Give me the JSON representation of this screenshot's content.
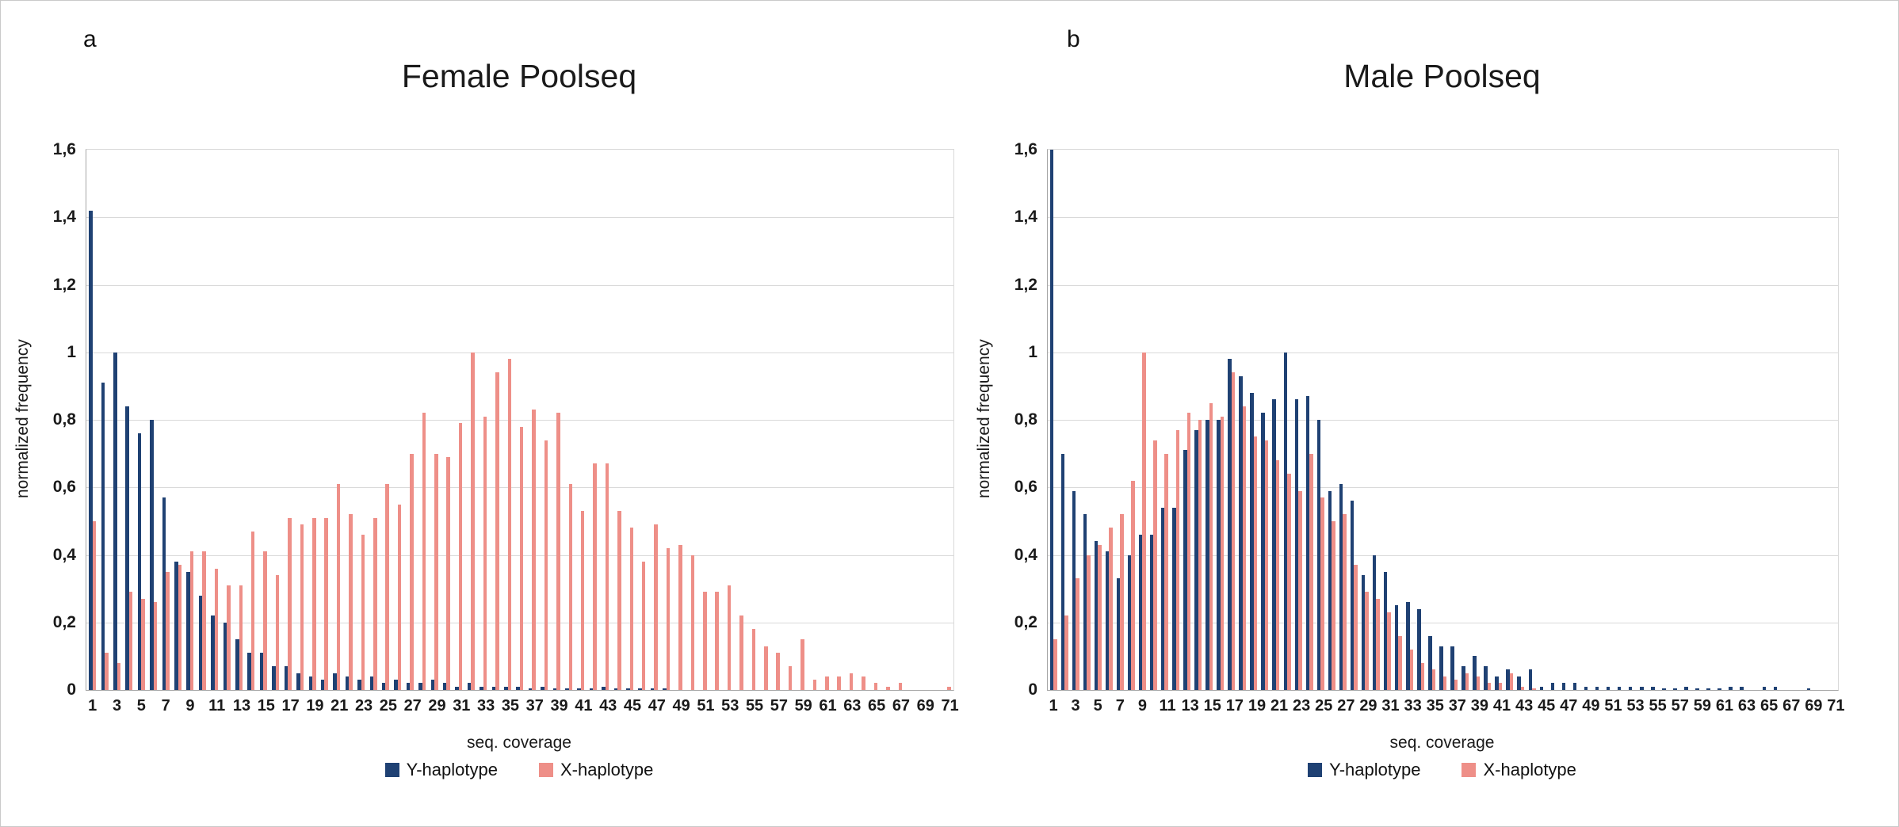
{
  "figure": {
    "panels": [
      {
        "label": "a"
      },
      {
        "label": "b"
      }
    ]
  },
  "chart_data": [
    {
      "type": "bar",
      "panel": "a",
      "title": "Female Poolseq",
      "xlabel": "seq. coverage",
      "ylabel": "normalized frequency",
      "ylim": [
        0,
        1.6
      ],
      "ytick_labels": [
        "1,6",
        "1,4",
        "1,2",
        "1",
        "0,8",
        "0,6",
        "0,4",
        "0,2",
        "0"
      ],
      "xtick_step": 2,
      "grid": "horizontal",
      "legend_position": "bottom",
      "categories": [
        1,
        2,
        3,
        4,
        5,
        6,
        7,
        8,
        9,
        10,
        11,
        12,
        13,
        14,
        15,
        16,
        17,
        18,
        19,
        20,
        21,
        22,
        23,
        24,
        25,
        26,
        27,
        28,
        29,
        30,
        31,
        32,
        33,
        34,
        35,
        36,
        37,
        38,
        39,
        40,
        41,
        42,
        43,
        44,
        45,
        46,
        47,
        48,
        49,
        50,
        51,
        52,
        53,
        54,
        55,
        56,
        57,
        58,
        59,
        60,
        61,
        62,
        63,
        64,
        65,
        66,
        67,
        68,
        69,
        70,
        71
      ],
      "series": [
        {
          "name": "Y-haplotype",
          "color": "#1f4173",
          "values": [
            1.42,
            0.91,
            1.0,
            0.84,
            0.76,
            0.8,
            0.57,
            0.38,
            0.35,
            0.28,
            0.22,
            0.2,
            0.15,
            0.11,
            0.11,
            0.07,
            0.07,
            0.05,
            0.04,
            0.03,
            0.05,
            0.04,
            0.03,
            0.04,
            0.02,
            0.03,
            0.02,
            0.02,
            0.03,
            0.02,
            0.01,
            0.02,
            0.01,
            0.01,
            0.01,
            0.01,
            0.005,
            0.01,
            0.005,
            0.005,
            0.005,
            0.005,
            0.01,
            0.005,
            0.005,
            0.005,
            0.005,
            0.005,
            0,
            0,
            0,
            0,
            0,
            0,
            0,
            0,
            0,
            0,
            0,
            0,
            0,
            0,
            0,
            0,
            0,
            0,
            0,
            0,
            0,
            0,
            0
          ]
        },
        {
          "name": "X-haplotype",
          "color": "#ee8f88",
          "values": [
            0.5,
            0.11,
            0.08,
            0.29,
            0.27,
            0.26,
            0.35,
            0.37,
            0.41,
            0.41,
            0.36,
            0.31,
            0.31,
            0.47,
            0.41,
            0.34,
            0.51,
            0.49,
            0.51,
            0.51,
            0.61,
            0.52,
            0.46,
            0.51,
            0.61,
            0.55,
            0.7,
            0.82,
            0.7,
            0.69,
            0.79,
            1.0,
            0.81,
            0.94,
            0.98,
            0.78,
            0.83,
            0.74,
            0.82,
            0.61,
            0.53,
            0.67,
            0.67,
            0.53,
            0.48,
            0.38,
            0.49,
            0.42,
            0.43,
            0.4,
            0.29,
            0.29,
            0.31,
            0.22,
            0.18,
            0.13,
            0.11,
            0.07,
            0.15,
            0.03,
            0.04,
            0.04,
            0.05,
            0.04,
            0.02,
            0.01,
            0.02,
            0,
            0,
            0,
            0.01
          ]
        }
      ]
    },
    {
      "type": "bar",
      "panel": "b",
      "title": "Male Poolseq",
      "xlabel": "seq. coverage",
      "ylabel": "normalized frequency",
      "ylim": [
        0,
        1.6
      ],
      "ytick_labels": [
        "1,6",
        "1,4",
        "1,2",
        "1",
        "0,8",
        "0,6",
        "0,4",
        "0,2",
        "0"
      ],
      "xtick_step": 2,
      "grid": "horizontal",
      "legend_position": "bottom",
      "note": "Y-haplotype bar at coverage 1 reaches the axis maximum (clipped at 1,6)",
      "categories": [
        1,
        2,
        3,
        4,
        5,
        6,
        7,
        8,
        9,
        10,
        11,
        12,
        13,
        14,
        15,
        16,
        17,
        18,
        19,
        20,
        21,
        22,
        23,
        24,
        25,
        26,
        27,
        28,
        29,
        30,
        31,
        32,
        33,
        34,
        35,
        36,
        37,
        38,
        39,
        40,
        41,
        42,
        43,
        44,
        45,
        46,
        47,
        48,
        49,
        50,
        51,
        52,
        53,
        54,
        55,
        56,
        57,
        58,
        59,
        60,
        61,
        62,
        63,
        64,
        65,
        66,
        67,
        68,
        69,
        70,
        71
      ],
      "series": [
        {
          "name": "Y-haplotype",
          "color": "#1f4173",
          "values": [
            1.6,
            0.7,
            0.59,
            0.52,
            0.44,
            0.41,
            0.33,
            0.4,
            0.46,
            0.46,
            0.54,
            0.54,
            0.71,
            0.77,
            0.8,
            0.8,
            0.98,
            0.93,
            0.88,
            0.82,
            0.86,
            1.0,
            0.86,
            0.87,
            0.8,
            0.59,
            0.61,
            0.56,
            0.34,
            0.4,
            0.35,
            0.25,
            0.26,
            0.24,
            0.16,
            0.13,
            0.13,
            0.07,
            0.1,
            0.07,
            0.04,
            0.06,
            0.04,
            0.06,
            0.01,
            0.02,
            0.02,
            0.02,
            0.01,
            0.01,
            0.01,
            0.01,
            0.01,
            0.01,
            0.01,
            0.005,
            0.005,
            0.01,
            0.005,
            0.005,
            0.005,
            0.01,
            0.01,
            0,
            0.01,
            0.01,
            0,
            0,
            0.005,
            0,
            0
          ]
        },
        {
          "name": "X-haplotype",
          "color": "#ee8f88",
          "values": [
            0.15,
            0.22,
            0.33,
            0.4,
            0.43,
            0.48,
            0.52,
            0.62,
            1.0,
            0.74,
            0.7,
            0.77,
            0.82,
            0.8,
            0.85,
            0.81,
            0.94,
            0.84,
            0.75,
            0.74,
            0.68,
            0.64,
            0.59,
            0.7,
            0.57,
            0.5,
            0.52,
            0.37,
            0.29,
            0.27,
            0.23,
            0.16,
            0.12,
            0.08,
            0.06,
            0.04,
            0.03,
            0.05,
            0.04,
            0.02,
            0.02,
            0.05,
            0.01,
            0.005,
            0,
            0,
            0,
            0,
            0,
            0,
            0,
            0,
            0,
            0,
            0,
            0,
            0,
            0,
            0,
            0,
            0,
            0,
            0,
            0,
            0,
            0,
            0,
            0,
            0,
            0,
            0
          ]
        }
      ]
    }
  ]
}
